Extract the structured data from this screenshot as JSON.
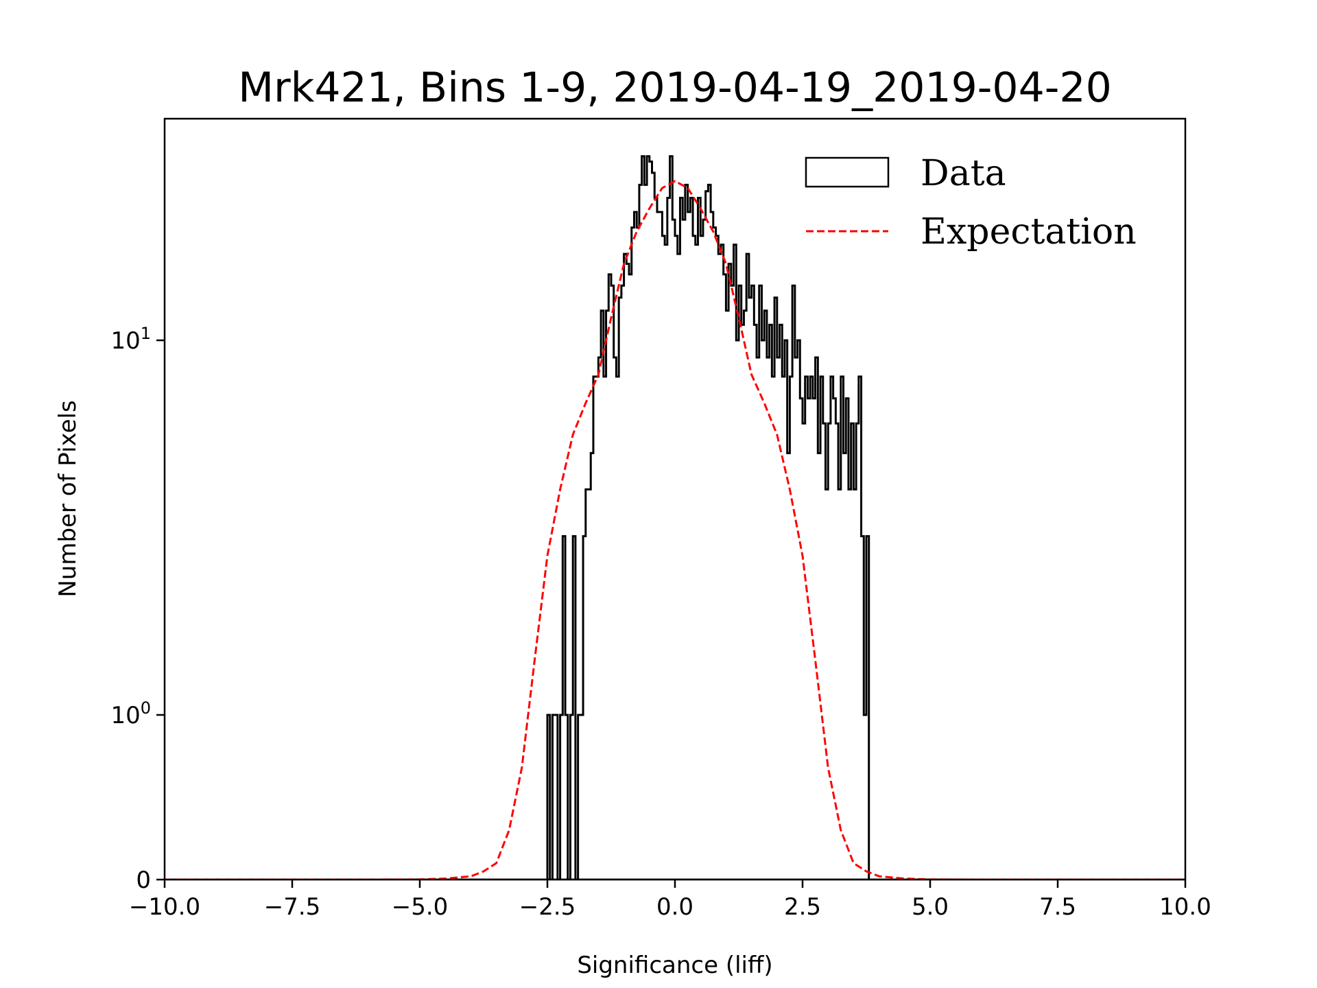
{
  "chart_data": {
    "type": "histogram",
    "title": "Mrk421, Bins 1-9, 2019-04-19_2019-04-20",
    "xlabel": "Significance (liff)",
    "ylabel": "Number of Pixels",
    "xlim": [
      -10,
      10
    ],
    "ylim": [
      0,
      39
    ],
    "yscale": "symlog",
    "linthresh": 1,
    "xticks": [
      -10.0,
      -7.5,
      -5.0,
      -2.5,
      0.0,
      2.5,
      5.0,
      7.5,
      10.0
    ],
    "xtick_labels": [
      "−10.0",
      "−7.5",
      "−5.0",
      "−2.5",
      "0.0",
      "2.5",
      "5.0",
      "7.5",
      "10.0"
    ],
    "yticks": [
      {
        "value": 0,
        "base": "0",
        "exp": ""
      },
      {
        "value": 1,
        "base": "10",
        "exp": "0"
      },
      {
        "value": 10,
        "base": "10",
        "exp": "1"
      }
    ],
    "grid": false,
    "legend_position": "top-right",
    "series": [
      {
        "name": "Data",
        "kind": "step-histogram",
        "color": "#000000",
        "bin_start": -2.5,
        "bin_width": 0.05,
        "counts": [
          1,
          0,
          1,
          1,
          0,
          1,
          3,
          1,
          0,
          1,
          3,
          0,
          1,
          1,
          3,
          4,
          4,
          5,
          8,
          8,
          9,
          12,
          8,
          12,
          15,
          14,
          9,
          8,
          13,
          14,
          17,
          16,
          15,
          20,
          22,
          20,
          26,
          31,
          26,
          31,
          30,
          28,
          24,
          22,
          22,
          19,
          18,
          24,
          31,
          21,
          19,
          17,
          24,
          21,
          26,
          22,
          24,
          19,
          18,
          24,
          19,
          21,
          25,
          26,
          22,
          20,
          19,
          17,
          18,
          15,
          12,
          16,
          14,
          18,
          10,
          14,
          11,
          12,
          17,
          13,
          14,
          11,
          9,
          14,
          10,
          12,
          9,
          11,
          8,
          13,
          9,
          11,
          8,
          10,
          5,
          8,
          14,
          9,
          10,
          7,
          6,
          8,
          7,
          8,
          7,
          9,
          5,
          8,
          6,
          4,
          6,
          8,
          7,
          6,
          4,
          8,
          5,
          7,
          4,
          6,
          4,
          6,
          8,
          3,
          1,
          3
        ]
      },
      {
        "name": "Expectation",
        "kind": "dashed-line",
        "color": "#ff0000",
        "x": [
          -10,
          -6,
          -5,
          -4.5,
          -4,
          -3.75,
          -3.5,
          -3.25,
          -3,
          -2.75,
          -2.5,
          -2.25,
          -2,
          -1.75,
          -1.5,
          -1.25,
          -1,
          -0.75,
          -0.5,
          -0.25,
          0,
          0.25,
          0.5,
          0.75,
          1,
          1.25,
          1.5,
          1.75,
          2,
          2.25,
          2.5,
          2.75,
          3,
          3.25,
          3.5,
          3.75,
          4,
          4.5,
          5,
          6,
          10
        ],
        "y": [
          0,
          0,
          0.001,
          0.006,
          0.02,
          0.05,
          0.1,
          0.3,
          0.68,
          1.4,
          2.66,
          4.0,
          5.6,
          6.8,
          8.1,
          11.5,
          16,
          19.5,
          22.5,
          25.5,
          26.6,
          25.5,
          22.5,
          19.5,
          16,
          11.5,
          8.1,
          6.8,
          5.6,
          4.0,
          2.66,
          1.4,
          0.68,
          0.3,
          0.1,
          0.05,
          0.02,
          0.006,
          0.001,
          0,
          0
        ]
      }
    ]
  }
}
